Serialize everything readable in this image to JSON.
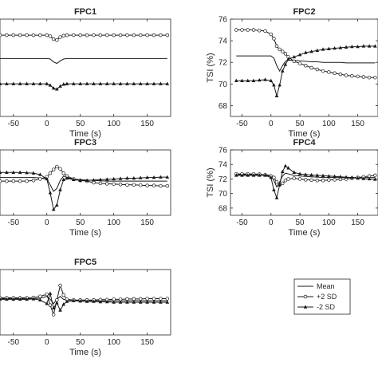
{
  "chart_data": [
    {
      "type": "line",
      "title": "FPC1",
      "xlabel": "Time (s)",
      "ylabel": "",
      "xlim": [
        -70,
        185
      ],
      "ylim": [
        66.5,
        76.5
      ],
      "xticks": [
        -50,
        0,
        50,
        100,
        150
      ],
      "xticklabels": [
        "-50",
        "0",
        "50",
        "100",
        "150"
      ],
      "yticks": [],
      "x": [
        -70,
        -60,
        -50,
        -40,
        -30,
        -20,
        -10,
        0,
        5,
        10,
        15,
        20,
        25,
        30,
        40,
        50,
        60,
        70,
        80,
        90,
        100,
        110,
        120,
        130,
        140,
        150,
        160,
        170,
        180
      ],
      "series": [
        {
          "name": "Mean",
          "marker": "none",
          "values": [
            72.45,
            72.45,
            72.45,
            72.45,
            72.45,
            72.45,
            72.45,
            72.45,
            72.4,
            72.1,
            71.95,
            72.2,
            72.4,
            72.45,
            72.45,
            72.45,
            72.45,
            72.45,
            72.45,
            72.45,
            72.45,
            72.45,
            72.45,
            72.45,
            72.45,
            72.45,
            72.45,
            72.45,
            72.45
          ]
        },
        {
          "name": "+2 SD",
          "marker": "circle",
          "values": [
            74.85,
            74.85,
            74.85,
            74.85,
            74.85,
            74.85,
            74.85,
            74.85,
            74.75,
            74.45,
            74.35,
            74.65,
            74.8,
            74.85,
            74.85,
            74.85,
            74.85,
            74.85,
            74.85,
            74.85,
            74.85,
            74.85,
            74.85,
            74.85,
            74.85,
            74.85,
            74.85,
            74.85,
            74.85
          ]
        },
        {
          "name": "-2 SD",
          "marker": "triangle",
          "values": [
            69.85,
            69.85,
            69.85,
            69.85,
            69.85,
            69.85,
            69.85,
            69.85,
            69.7,
            69.4,
            69.3,
            69.6,
            69.8,
            69.85,
            69.85,
            69.85,
            69.85,
            69.85,
            69.85,
            69.85,
            69.85,
            69.85,
            69.85,
            69.85,
            69.85,
            69.85,
            69.85,
            69.85,
            69.85
          ]
        }
      ]
    },
    {
      "type": "line",
      "title": "FPC2",
      "xlabel": "Time (s)",
      "ylabel": "TSI (%)",
      "xlim": [
        -70,
        185
      ],
      "ylim": [
        67,
        76
      ],
      "xticks": [
        -50,
        0,
        50,
        100,
        150
      ],
      "xticklabels": [
        "-50",
        "0",
        "50",
        "100",
        "150"
      ],
      "yticks": [
        68,
        70,
        72,
        74,
        76
      ],
      "yticklabels": [
        "68",
        "70",
        "72",
        "74",
        "76"
      ],
      "x": [
        -60,
        -50,
        -40,
        -30,
        -20,
        -10,
        0,
        5,
        10,
        15,
        20,
        25,
        30,
        40,
        50,
        60,
        70,
        80,
        90,
        100,
        110,
        120,
        130,
        140,
        150,
        160,
        170,
        180
      ],
      "series": [
        {
          "name": "Mean",
          "marker": "none",
          "values": [
            72.6,
            72.6,
            72.6,
            72.6,
            72.6,
            72.6,
            72.6,
            72.4,
            71.7,
            71.2,
            71.7,
            72.1,
            72.2,
            72.2,
            72.15,
            72.1,
            72.05,
            72.05,
            72.0,
            72.0,
            72.0,
            72.0,
            71.95,
            71.95,
            71.95,
            71.95,
            71.95,
            71.95
          ]
        },
        {
          "name": "+2 SD",
          "marker": "circle",
          "values": [
            75.0,
            75.0,
            75.0,
            75.0,
            74.95,
            74.9,
            74.6,
            74.2,
            73.5,
            73.2,
            73.0,
            72.8,
            72.5,
            72.1,
            71.9,
            71.7,
            71.5,
            71.35,
            71.2,
            71.1,
            71.0,
            70.9,
            70.8,
            70.75,
            70.7,
            70.65,
            70.6,
            70.6
          ]
        },
        {
          "name": "-2 SD",
          "marker": "triangle",
          "values": [
            70.3,
            70.3,
            70.3,
            70.3,
            70.35,
            70.4,
            70.3,
            69.9,
            68.9,
            69.9,
            71.2,
            71.8,
            72.3,
            72.5,
            72.7,
            72.9,
            73.0,
            73.1,
            73.2,
            73.25,
            73.3,
            73.35,
            73.4,
            73.45,
            73.45,
            73.5,
            73.5,
            73.5
          ]
        }
      ]
    },
    {
      "type": "line",
      "title": "FPC3",
      "xlabel": "Time (s)",
      "ylabel": "",
      "xlim": [
        -70,
        185
      ],
      "ylim": [
        67.5,
        76.5
      ],
      "xticks": [
        -50,
        0,
        50,
        100,
        150
      ],
      "xticklabels": [
        "-50",
        "0",
        "50",
        "100",
        "150"
      ],
      "yticks": [],
      "x": [
        -70,
        -60,
        -50,
        -40,
        -30,
        -20,
        -10,
        0,
        5,
        10,
        15,
        20,
        25,
        30,
        40,
        50,
        60,
        70,
        80,
        90,
        100,
        110,
        120,
        130,
        140,
        150,
        160,
        170,
        180
      ],
      "series": [
        {
          "name": "Mean",
          "marker": "none",
          "values": [
            72.7,
            72.7,
            72.7,
            72.7,
            72.7,
            72.7,
            72.65,
            72.5,
            71.7,
            70.8,
            71.2,
            72.3,
            72.9,
            72.7,
            72.5,
            72.4,
            72.35,
            72.3,
            72.25,
            72.2,
            72.2,
            72.2,
            72.2,
            72.2,
            72.2,
            72.2,
            72.2,
            72.2,
            72.2
          ]
        },
        {
          "name": "+2 SD",
          "marker": "circle",
          "values": [
            72.2,
            72.2,
            72.2,
            72.2,
            72.2,
            72.3,
            72.5,
            72.8,
            73.3,
            73.8,
            74.2,
            73.9,
            73.3,
            72.9,
            72.5,
            72.3,
            72.2,
            72.0,
            71.9,
            71.85,
            71.8,
            71.75,
            71.7,
            71.7,
            71.65,
            71.6,
            71.6,
            71.55,
            71.55
          ]
        },
        {
          "name": "-2 SD",
          "marker": "triangle",
          "values": [
            73.4,
            73.4,
            73.4,
            73.4,
            73.35,
            73.3,
            73.1,
            72.5,
            70.6,
            68.3,
            68.9,
            71.0,
            72.4,
            72.6,
            72.4,
            72.3,
            72.3,
            72.35,
            72.4,
            72.45,
            72.5,
            72.55,
            72.6,
            72.6,
            72.65,
            72.7,
            72.7,
            72.75,
            72.75
          ]
        }
      ]
    },
    {
      "type": "line",
      "title": "FPC4",
      "xlabel": "Time (s)",
      "ylabel": "TSI (%)",
      "xlim": [
        -70,
        185
      ],
      "ylim": [
        67,
        76
      ],
      "xticks": [
        -50,
        0,
        50,
        100,
        150
      ],
      "xticklabels": [
        "-50",
        "0",
        "50",
        "100",
        "150"
      ],
      "yticks": [
        68,
        70,
        72,
        74,
        76
      ],
      "yticklabels": [
        "68",
        "70",
        "72",
        "74",
        "76"
      ],
      "x": [
        -60,
        -50,
        -40,
        -30,
        -20,
        -10,
        0,
        5,
        10,
        15,
        20,
        25,
        30,
        40,
        50,
        60,
        70,
        80,
        90,
        100,
        110,
        120,
        130,
        140,
        150,
        160,
        170,
        180
      ],
      "series": [
        {
          "name": "Mean",
          "marker": "none",
          "values": [
            72.6,
            72.6,
            72.6,
            72.6,
            72.6,
            72.6,
            72.5,
            71.8,
            70.9,
            71.6,
            72.4,
            72.8,
            72.7,
            72.5,
            72.4,
            72.35,
            72.3,
            72.25,
            72.2,
            72.2,
            72.2,
            72.2,
            72.2,
            72.2,
            72.2,
            72.2,
            72.2,
            72.2
          ]
        },
        {
          "name": "+2 SD",
          "marker": "circle",
          "values": [
            72.7,
            72.7,
            72.7,
            72.7,
            72.65,
            72.55,
            72.4,
            72.2,
            71.6,
            71.2,
            71.4,
            71.8,
            72.0,
            72.1,
            72.0,
            71.9,
            71.85,
            71.8,
            71.8,
            71.85,
            71.9,
            71.95,
            72.0,
            72.1,
            72.2,
            72.3,
            72.4,
            72.5
          ]
        },
        {
          "name": "-2 SD",
          "marker": "triangle",
          "values": [
            72.5,
            72.5,
            72.5,
            72.5,
            72.5,
            72.5,
            72.2,
            70.5,
            69.4,
            71.2,
            73.0,
            73.8,
            73.5,
            72.9,
            72.7,
            72.6,
            72.55,
            72.5,
            72.45,
            72.4,
            72.35,
            72.3,
            72.25,
            72.2,
            72.1,
            72.05,
            72.0,
            71.95
          ]
        }
      ]
    },
    {
      "type": "line",
      "title": "FPC5",
      "xlabel": "Time (s)",
      "ylabel": "",
      "xlim": [
        -70,
        185
      ],
      "ylim": [
        67.5,
        76.5
      ],
      "xticks": [
        -50,
        0,
        50,
        100,
        150
      ],
      "xticklabels": [
        "-50",
        "0",
        "50",
        "100",
        "150"
      ],
      "yticks": [],
      "x": [
        -70,
        -60,
        -50,
        -40,
        -30,
        -20,
        -10,
        0,
        5,
        10,
        15,
        20,
        25,
        30,
        40,
        50,
        60,
        70,
        80,
        90,
        100,
        110,
        120,
        130,
        140,
        150,
        160,
        170,
        180
      ],
      "series": [
        {
          "name": "Mean",
          "marker": "none",
          "values": [
            72.5,
            72.5,
            72.5,
            72.5,
            72.5,
            72.5,
            72.55,
            72.8,
            72.4,
            71.8,
            72.4,
            72.8,
            72.4,
            72.3,
            72.3,
            72.25,
            72.25,
            72.2,
            72.2,
            72.2,
            72.2,
            72.2,
            72.2,
            72.2,
            72.2,
            72.2,
            72.2,
            72.2,
            72.2
          ]
        },
        {
          "name": "+2 SD",
          "marker": "circle",
          "values": [
            72.6,
            72.6,
            72.6,
            72.6,
            72.6,
            72.65,
            72.8,
            73.1,
            71.6,
            70.3,
            72.3,
            74.3,
            73.0,
            72.4,
            72.3,
            72.3,
            72.3,
            72.3,
            72.35,
            72.35,
            72.4,
            72.4,
            72.45,
            72.45,
            72.45,
            72.5,
            72.5,
            72.5,
            72.5
          ]
        },
        {
          "name": "-2 SD",
          "marker": "triangle",
          "values": [
            72.4,
            72.4,
            72.4,
            72.4,
            72.4,
            72.45,
            72.3,
            71.8,
            73.2,
            71.2,
            71.9,
            70.9,
            71.7,
            72.1,
            72.2,
            72.15,
            72.1,
            72.1,
            72.05,
            72.05,
            72.0,
            72.0,
            72.0,
            72.0,
            72.0,
            72.0,
            72.0,
            72.0,
            72.0
          ]
        }
      ]
    }
  ],
  "legend": {
    "placement": "right-bottom",
    "entries": [
      {
        "label": "Mean",
        "marker": "none"
      },
      {
        "label": "+2 SD",
        "marker": "circle"
      },
      {
        "label": "-2 SD",
        "marker": "triangle"
      }
    ]
  }
}
